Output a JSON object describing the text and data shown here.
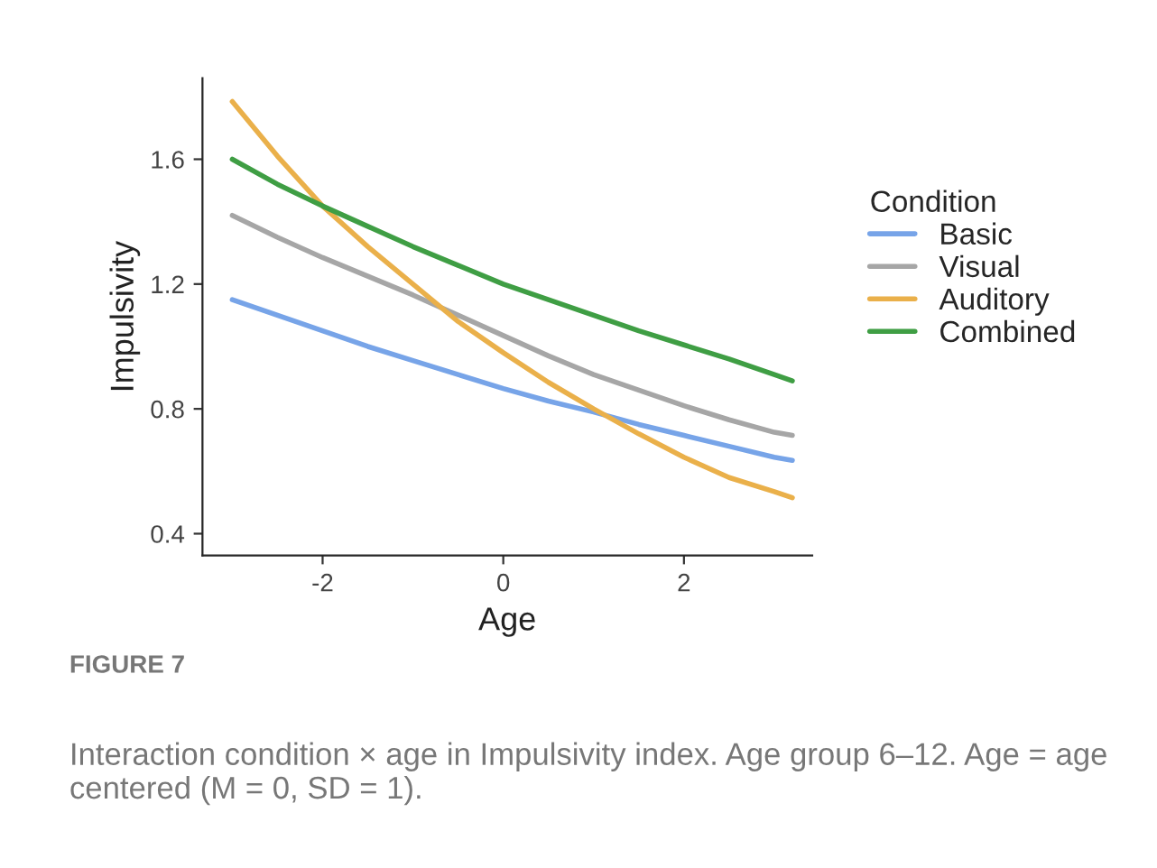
{
  "chart_data": {
    "type": "line",
    "xlabel": "Age",
    "ylabel": "Impulsivity",
    "legend_title": "Condition",
    "legend": "right",
    "grid": false,
    "marker": "none",
    "line_style": "solid",
    "x": [
      -3,
      -2.5,
      -2,
      -1.5,
      -1,
      -0.5,
      0,
      0.5,
      1,
      1.5,
      2,
      2.5,
      3,
      3.2
    ],
    "xlim": [
      -3.33,
      3.42
    ],
    "xticks": [
      -2,
      0,
      2
    ],
    "ylim": [
      0.33,
      1.86
    ],
    "yticks": [
      0.4,
      0.8,
      1.2,
      1.6
    ],
    "series": [
      {
        "name": "Basic",
        "color": "#77a4e8",
        "values": [
          1.15,
          1.1,
          1.05,
          1.0,
          0.955,
          0.91,
          0.865,
          0.825,
          0.79,
          0.75,
          0.715,
          0.68,
          0.645,
          0.635
        ]
      },
      {
        "name": "Visual",
        "color": "#a6a6a6",
        "values": [
          1.42,
          1.35,
          1.285,
          1.225,
          1.165,
          1.1,
          1.035,
          0.97,
          0.91,
          0.86,
          0.81,
          0.765,
          0.725,
          0.715
        ]
      },
      {
        "name": "Auditory",
        "color": "#eab04a",
        "values": [
          1.785,
          1.61,
          1.45,
          1.32,
          1.2,
          1.08,
          0.98,
          0.885,
          0.8,
          0.72,
          0.645,
          0.58,
          0.535,
          0.515
        ]
      },
      {
        "name": "Combined",
        "color": "#3f9e44",
        "values": [
          1.6,
          1.52,
          1.45,
          1.385,
          1.32,
          1.26,
          1.2,
          1.15,
          1.1,
          1.05,
          1.005,
          0.96,
          0.91,
          0.89
        ]
      }
    ],
    "annotations": [
      "FIGURE 7",
      "Interaction condition × age in Impulsivity index. Age group 6–12. Age = age centered (M = 0, SD = 1)."
    ]
  }
}
